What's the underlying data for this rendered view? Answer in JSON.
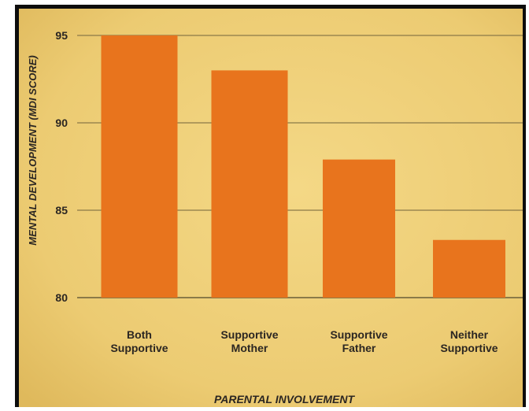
{
  "chart_data": {
    "type": "bar",
    "categories": [
      [
        "Both",
        "Supportive"
      ],
      [
        "Supportive",
        "Mother"
      ],
      [
        "Supportive",
        "Father"
      ],
      [
        "Neither",
        "Supportive"
      ]
    ],
    "values": [
      95,
      93,
      87.9,
      83.3
    ],
    "xlabel": "PARENTAL INVOLVEMENT",
    "ylabel": "MENTAL DEVELOPMENT (MDI SCORE)",
    "ylim": [
      80,
      95
    ],
    "yticks": [
      80,
      85,
      90,
      95
    ],
    "grid": true,
    "legend": "none"
  },
  "colors": {
    "bar": "#e8741d",
    "background": "#efcd74",
    "grid": "#8b7a48",
    "text": "#2b2622",
    "frame": "#0d0d0d"
  }
}
